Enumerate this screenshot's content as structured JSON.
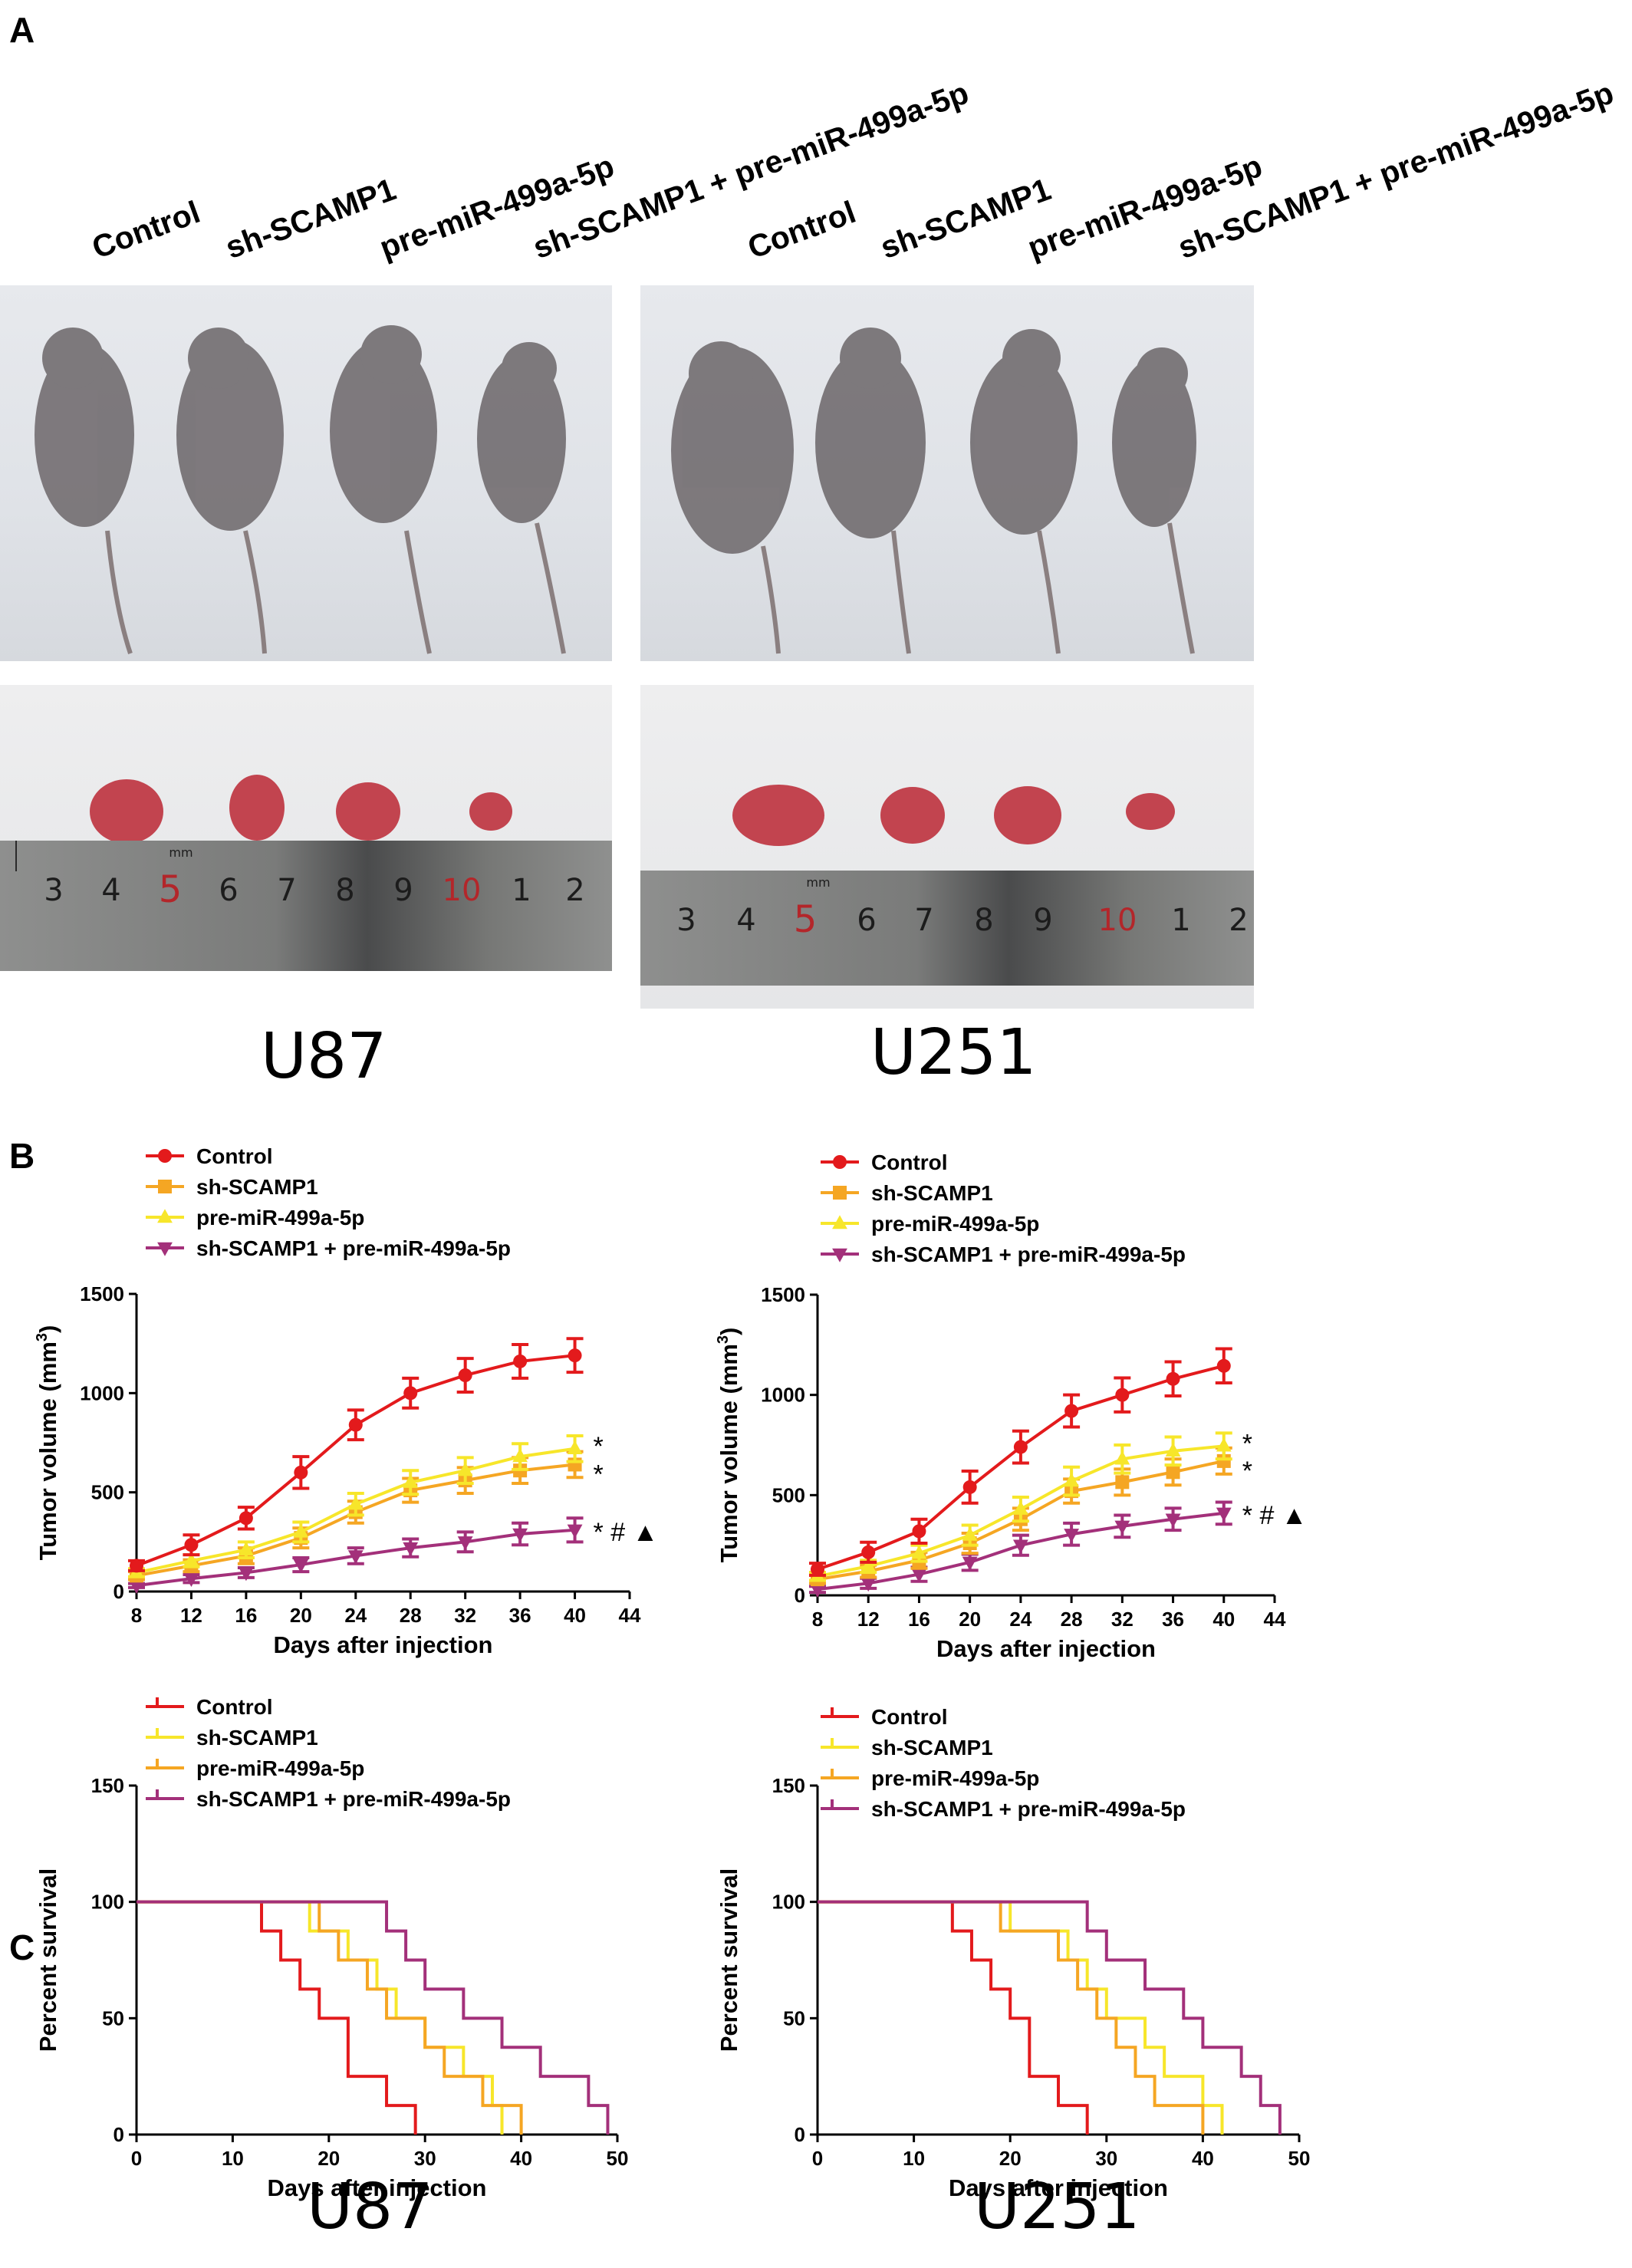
{
  "panels": {
    "a": "A",
    "b": "B",
    "c": "C"
  },
  "groups": [
    "Control",
    "sh-SCAMP1",
    "pre-miR-499a-5p",
    "sh-SCAMP1 + pre-miR-499a-5p"
  ],
  "cell_lines": {
    "left": "U87",
    "right": "U251"
  },
  "ruler": {
    "unit_label": "mm",
    "left_numbers": [
      "3",
      "4",
      "5",
      "6",
      "7",
      "8",
      "9",
      "10",
      "1",
      "2"
    ],
    "right_numbers": [
      "3",
      "4",
      "5",
      "6",
      "7",
      "8",
      "9",
      "10",
      "1",
      "2"
    ]
  },
  "colors": {
    "control": "#e31a1c",
    "orange": "#f5a623",
    "yellow": "#f7e62a",
    "purple": "#a3307a",
    "ruler_red": "#b3262a"
  },
  "chart_data": [
    {
      "id": "B-U87",
      "type": "line",
      "xlabel": "Days after injection",
      "ylabel": "Tumor volume (mm3)",
      "xlim": [
        8,
        44
      ],
      "xticks": [
        8,
        12,
        16,
        20,
        24,
        28,
        32,
        36,
        40,
        44
      ],
      "ylim": [
        0,
        1500
      ],
      "yticks": [
        0,
        500,
        1000,
        1500
      ],
      "x": [
        8,
        12,
        16,
        20,
        24,
        28,
        32,
        36,
        40
      ],
      "series": [
        {
          "name": "Control",
          "color": "#e31a1c",
          "marker": "circle",
          "values": [
            130,
            235,
            370,
            600,
            840,
            1000,
            1090,
            1160,
            1190
          ],
          "err": [
            25,
            50,
            55,
            80,
            75,
            75,
            85,
            85,
            85
          ]
        },
        {
          "name": "sh-SCAMP1",
          "color": "#f5a623",
          "marker": "square",
          "values": [
            80,
            130,
            180,
            270,
            400,
            510,
            560,
            610,
            640
          ],
          "err": [
            20,
            30,
            40,
            50,
            55,
            60,
            65,
            65,
            65
          ]
        },
        {
          "name": "pre-miR-499a-5p",
          "color": "#f7e62a",
          "marker": "triangle-up",
          "values": [
            95,
            155,
            210,
            300,
            440,
            550,
            610,
            680,
            720
          ],
          "err": [
            20,
            30,
            40,
            50,
            55,
            60,
            65,
            65,
            65
          ]
        },
        {
          "name": "sh-SCAMP1 + pre-miR-499a-5p",
          "color": "#a3307a",
          "marker": "triangle-down",
          "values": [
            30,
            65,
            95,
            135,
            180,
            220,
            250,
            290,
            310
          ],
          "err": [
            10,
            20,
            25,
            35,
            40,
            45,
            50,
            55,
            60
          ]
        }
      ],
      "annotations": [
        {
          "series": 2,
          "text": "*"
        },
        {
          "series": 1,
          "text": "*"
        },
        {
          "series": 3,
          "text": "* # ▲"
        }
      ]
    },
    {
      "id": "B-U251",
      "type": "line",
      "xlabel": "Days after injection",
      "ylabel": "Tumor volume (mm3)",
      "xlim": [
        8,
        44
      ],
      "xticks": [
        8,
        12,
        16,
        20,
        24,
        28,
        32,
        36,
        40,
        44
      ],
      "ylim": [
        0,
        1500
      ],
      "yticks": [
        0,
        500,
        1000,
        1500
      ],
      "x": [
        8,
        12,
        16,
        20,
        24,
        28,
        32,
        36,
        40
      ],
      "series": [
        {
          "name": "Control",
          "color": "#e31a1c",
          "marker": "circle",
          "values": [
            130,
            215,
            320,
            540,
            740,
            920,
            1000,
            1080,
            1145
          ],
          "err": [
            30,
            50,
            60,
            80,
            80,
            80,
            85,
            85,
            85
          ]
        },
        {
          "name": "sh-SCAMP1",
          "color": "#f5a623",
          "marker": "square",
          "values": [
            80,
            120,
            175,
            260,
            380,
            520,
            565,
            615,
            670
          ],
          "err": [
            20,
            30,
            40,
            50,
            55,
            60,
            65,
            65,
            65
          ]
        },
        {
          "name": "pre-miR-499a-5p",
          "color": "#f7e62a",
          "marker": "triangle-up",
          "values": [
            95,
            145,
            210,
            300,
            430,
            570,
            680,
            720,
            745
          ],
          "err": [
            20,
            30,
            40,
            50,
            60,
            70,
            70,
            70,
            65
          ]
        },
        {
          "name": "sh-SCAMP1 + pre-miR-499a-5p",
          "color": "#a3307a",
          "marker": "triangle-down",
          "values": [
            30,
            60,
            105,
            165,
            250,
            305,
            345,
            380,
            410
          ],
          "err": [
            15,
            25,
            35,
            40,
            50,
            55,
            55,
            55,
            55
          ]
        }
      ],
      "annotations": [
        {
          "series": 2,
          "text": "*"
        },
        {
          "series": 1,
          "text": "*"
        },
        {
          "series": 3,
          "text": "* # ▲"
        }
      ]
    },
    {
      "id": "C-U87",
      "type": "line",
      "step": true,
      "xlabel": "Days after injection",
      "ylabel": "Percent survival",
      "xlim": [
        0,
        50
      ],
      "xticks": [
        0,
        10,
        20,
        30,
        40,
        50
      ],
      "ylim": [
        0,
        150
      ],
      "yticks": [
        0,
        50,
        100,
        150
      ],
      "series": [
        {
          "name": "Control",
          "color": "#e31a1c",
          "steps": [
            [
              0,
              100
            ],
            [
              13,
              87.5
            ],
            [
              15,
              75
            ],
            [
              17,
              62.5
            ],
            [
              19,
              50
            ],
            [
              22,
              25
            ],
            [
              26,
              12.5
            ],
            [
              29,
              0
            ]
          ]
        },
        {
          "name": "sh-SCAMP1",
          "color": "#f7e62a",
          "steps": [
            [
              0,
              100
            ],
            [
              18,
              87.5
            ],
            [
              22,
              75
            ],
            [
              25,
              62.5
            ],
            [
              27,
              50
            ],
            [
              30,
              37.5
            ],
            [
              34,
              25
            ],
            [
              37,
              12.5
            ],
            [
              38,
              0
            ]
          ]
        },
        {
          "name": "pre-miR-499a-5p",
          "color": "#f5a623",
          "steps": [
            [
              0,
              100
            ],
            [
              19,
              87.5
            ],
            [
              21,
              75
            ],
            [
              24,
              62.5
            ],
            [
              26,
              50
            ],
            [
              30,
              37.5
            ],
            [
              32,
              25
            ],
            [
              36,
              12.5
            ],
            [
              40,
              0
            ]
          ]
        },
        {
          "name": "sh-SCAMP1 + pre-miR-499a-5p",
          "color": "#a3307a",
          "steps": [
            [
              0,
              100
            ],
            [
              26,
              87.5
            ],
            [
              28,
              75
            ],
            [
              30,
              62.5
            ],
            [
              34,
              50
            ],
            [
              38,
              37.5
            ],
            [
              42,
              25
            ],
            [
              47,
              12.5
            ],
            [
              49,
              0
            ]
          ]
        }
      ]
    },
    {
      "id": "C-U251",
      "type": "line",
      "step": true,
      "xlabel": "Days after injection",
      "ylabel": "Percent survival",
      "xlim": [
        0,
        50
      ],
      "xticks": [
        0,
        10,
        20,
        30,
        40,
        50
      ],
      "ylim": [
        0,
        150
      ],
      "yticks": [
        0,
        50,
        100,
        150
      ],
      "series": [
        {
          "name": "Control",
          "color": "#e31a1c",
          "steps": [
            [
              0,
              100
            ],
            [
              14,
              87.5
            ],
            [
              16,
              75
            ],
            [
              18,
              62.5
            ],
            [
              20,
              50
            ],
            [
              22,
              25
            ],
            [
              25,
              12.5
            ],
            [
              28,
              0
            ]
          ]
        },
        {
          "name": "sh-SCAMP1",
          "color": "#f7e62a",
          "steps": [
            [
              0,
              100
            ],
            [
              20,
              87.5
            ],
            [
              26,
              75
            ],
            [
              28,
              62.5
            ],
            [
              30,
              50
            ],
            [
              34,
              37.5
            ],
            [
              36,
              25
            ],
            [
              40,
              12.5
            ],
            [
              42,
              0
            ]
          ]
        },
        {
          "name": "pre-miR-499a-5p",
          "color": "#f5a623",
          "steps": [
            [
              0,
              100
            ],
            [
              19,
              87.5
            ],
            [
              25,
              75
            ],
            [
              27,
              62.5
            ],
            [
              29,
              50
            ],
            [
              31,
              37.5
            ],
            [
              33,
              25
            ],
            [
              35,
              12.5
            ],
            [
              40,
              0
            ]
          ]
        },
        {
          "name": "sh-SCAMP1 + pre-miR-499a-5p",
          "color": "#a3307a",
          "steps": [
            [
              0,
              100
            ],
            [
              28,
              87.5
            ],
            [
              30,
              75
            ],
            [
              34,
              62.5
            ],
            [
              38,
              50
            ],
            [
              40,
              37.5
            ],
            [
              44,
              25
            ],
            [
              46,
              12.5
            ],
            [
              48,
              0
            ]
          ]
        }
      ]
    }
  ]
}
